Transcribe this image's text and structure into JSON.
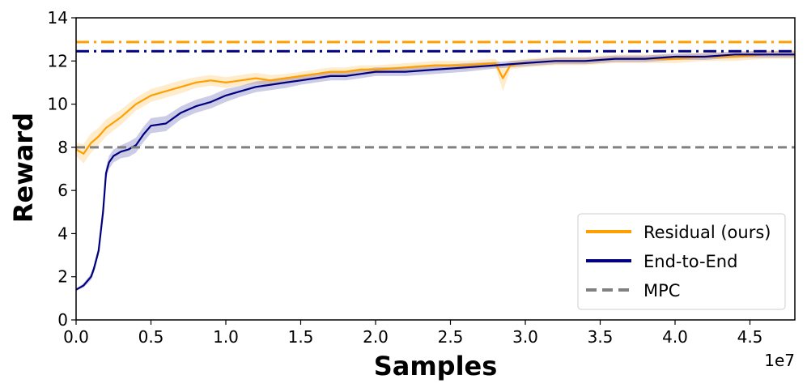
{
  "chart_data": {
    "type": "line",
    "title": "",
    "xlabel": "Samples",
    "ylabel": "Reward",
    "x_offset_label": "1e7",
    "xlim": [
      0.0,
      4.8
    ],
    "ylim": [
      0,
      14
    ],
    "xticks": [
      0.0,
      0.5,
      1.0,
      1.5,
      2.0,
      2.5,
      3.0,
      3.5,
      4.0,
      4.5
    ],
    "xtick_labels": [
      "0.0",
      "0.5",
      "1.0",
      "1.5",
      "2.0",
      "2.5",
      "3.0",
      "3.5",
      "4.0",
      "4.5"
    ],
    "yticks": [
      0,
      2,
      4,
      6,
      8,
      10,
      12,
      14
    ],
    "ytick_labels": [
      "0",
      "2",
      "4",
      "6",
      "8",
      "10",
      "12",
      "14"
    ],
    "grid": false,
    "legend_position": "lower-right",
    "series": [
      {
        "name": "Residual (ours)",
        "color": "#ff9f00",
        "x": [
          0.0,
          0.05,
          0.1,
          0.15,
          0.2,
          0.3,
          0.4,
          0.5,
          0.6,
          0.7,
          0.8,
          0.9,
          1.0,
          1.1,
          1.2,
          1.3,
          1.4,
          1.5,
          1.6,
          1.7,
          1.8,
          1.9,
          2.0,
          2.2,
          2.4,
          2.6,
          2.8,
          2.85,
          2.9,
          3.0,
          3.2,
          3.4,
          3.6,
          3.8,
          4.0,
          4.2,
          4.4,
          4.6,
          4.8
        ],
        "y": [
          7.9,
          7.7,
          8.2,
          8.5,
          8.9,
          9.4,
          10.0,
          10.4,
          10.6,
          10.8,
          11.0,
          11.1,
          11.0,
          11.1,
          11.2,
          11.1,
          11.2,
          11.3,
          11.4,
          11.5,
          11.5,
          11.6,
          11.6,
          11.7,
          11.8,
          11.8,
          11.9,
          11.2,
          11.8,
          11.9,
          12.0,
          12.0,
          12.1,
          12.1,
          12.1,
          12.2,
          12.2,
          12.3,
          12.3
        ],
        "band": [
          0.3,
          0.45,
          0.45,
          0.4,
          0.4,
          0.35,
          0.3,
          0.3,
          0.3,
          0.3,
          0.25,
          0.25,
          0.25,
          0.25,
          0.25,
          0.25,
          0.2,
          0.2,
          0.2,
          0.2,
          0.2,
          0.2,
          0.2,
          0.2,
          0.2,
          0.2,
          0.2,
          0.6,
          0.2,
          0.2,
          0.2,
          0.2,
          0.2,
          0.2,
          0.2,
          0.2,
          0.2,
          0.2,
          0.2
        ]
      },
      {
        "name": "End-to-End",
        "color": "#000080",
        "x": [
          0.0,
          0.05,
          0.1,
          0.12,
          0.15,
          0.18,
          0.2,
          0.22,
          0.25,
          0.3,
          0.35,
          0.4,
          0.45,
          0.5,
          0.6,
          0.7,
          0.8,
          0.9,
          1.0,
          1.1,
          1.2,
          1.3,
          1.4,
          1.5,
          1.6,
          1.7,
          1.8,
          1.9,
          2.0,
          2.2,
          2.4,
          2.6,
          2.8,
          3.0,
          3.2,
          3.4,
          3.6,
          3.8,
          4.0,
          4.2,
          4.4,
          4.6,
          4.8
        ],
        "y": [
          1.4,
          1.6,
          2.0,
          2.4,
          3.2,
          5.0,
          6.8,
          7.3,
          7.6,
          7.8,
          7.9,
          8.1,
          8.6,
          9.0,
          9.1,
          9.6,
          9.9,
          10.1,
          10.4,
          10.6,
          10.8,
          10.9,
          11.0,
          11.1,
          11.2,
          11.3,
          11.3,
          11.4,
          11.5,
          11.5,
          11.6,
          11.7,
          11.8,
          11.9,
          12.0,
          12.0,
          12.1,
          12.1,
          12.2,
          12.2,
          12.3,
          12.3,
          12.3
        ],
        "band": [
          0.05,
          0.1,
          0.15,
          0.2,
          0.2,
          0.3,
          0.3,
          0.3,
          0.3,
          0.3,
          0.35,
          0.35,
          0.35,
          0.35,
          0.35,
          0.3,
          0.3,
          0.3,
          0.3,
          0.25,
          0.25,
          0.25,
          0.25,
          0.2,
          0.2,
          0.2,
          0.2,
          0.2,
          0.2,
          0.2,
          0.2,
          0.2,
          0.15,
          0.15,
          0.15,
          0.15,
          0.15,
          0.15,
          0.15,
          0.15,
          0.15,
          0.15,
          0.15
        ]
      },
      {
        "name": "MPC",
        "color": "#808080",
        "style": "dashed",
        "y_constant": 8.0
      }
    ],
    "reference_lines": [
      {
        "color": "#ff9f00",
        "style": "dashdot",
        "y": 12.88
      },
      {
        "color": "#000080",
        "style": "dashdot",
        "y": 12.45
      }
    ]
  }
}
